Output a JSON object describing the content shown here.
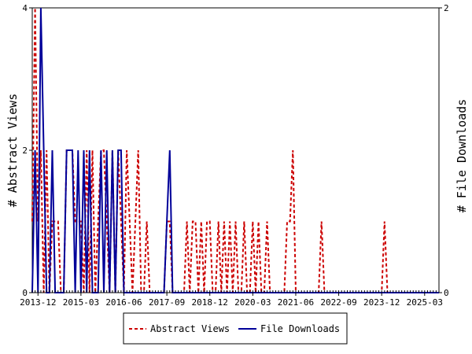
{
  "chart_data": {
    "type": "line",
    "title": "",
    "x_ticks": [
      "2013-12",
      "2015-03",
      "2016-06",
      "2017-09",
      "2018-12",
      "2020-03",
      "2021-06",
      "2022-09",
      "2023-12",
      "2025-03"
    ],
    "y_left_label": "# Abstract Views",
    "y_right_label": "# File Downloads",
    "y_left_range": [
      0,
      4
    ],
    "y_right_range": [
      0,
      2
    ],
    "y_left_ticks": [
      "0",
      "2",
      "4"
    ],
    "y_right_ticks": [
      "0",
      "2"
    ],
    "x_range": [
      "2013-10",
      "2025-08"
    ],
    "legend_position": "bottom-center",
    "colors": {
      "abstract_views": "#cc0000",
      "file_downloads": "#000099"
    },
    "series": [
      {
        "name": "Abstract Views",
        "axis": "left",
        "style": "dashed",
        "points": [
          [
            "2013-10",
            1
          ],
          [
            "2013-11",
            4
          ],
          [
            "2013-12",
            1
          ],
          [
            "2014-01",
            2
          ],
          [
            "2014-02",
            0
          ],
          [
            "2014-03",
            2
          ],
          [
            "2014-04",
            0
          ],
          [
            "2014-05",
            1
          ],
          [
            "2014-06",
            1
          ],
          [
            "2014-07",
            1
          ],
          [
            "2014-08",
            0
          ],
          [
            "2014-09",
            0
          ],
          [
            "2014-10",
            2
          ],
          [
            "2014-11",
            2
          ],
          [
            "2014-12",
            2
          ],
          [
            "2015-01",
            1
          ],
          [
            "2015-02",
            1
          ],
          [
            "2015-03",
            1
          ],
          [
            "2015-04",
            0
          ],
          [
            "2015-05",
            2
          ],
          [
            "2015-06",
            0
          ],
          [
            "2015-07",
            2
          ],
          [
            "2015-08",
            0
          ],
          [
            "2015-09",
            1
          ],
          [
            "2015-10",
            2
          ],
          [
            "2015-11",
            2
          ],
          [
            "2015-12",
            1
          ],
          [
            "2016-01",
            0
          ],
          [
            "2016-02",
            2
          ],
          [
            "2016-03",
            0
          ],
          [
            "2016-04",
            2
          ],
          [
            "2016-05",
            1
          ],
          [
            "2016-06",
            0
          ],
          [
            "2016-07",
            2
          ],
          [
            "2016-08",
            1
          ],
          [
            "2016-09",
            0
          ],
          [
            "2016-10",
            1
          ],
          [
            "2016-11",
            2
          ],
          [
            "2016-12",
            0
          ],
          [
            "2017-01",
            0
          ],
          [
            "2017-02",
            1
          ],
          [
            "2017-03",
            0
          ],
          [
            "2017-04",
            0
          ],
          [
            "2017-05",
            0
          ],
          [
            "2017-06",
            0
          ],
          [
            "2017-07",
            0
          ],
          [
            "2017-08",
            0
          ],
          [
            "2017-09",
            1
          ],
          [
            "2017-10",
            1
          ],
          [
            "2017-11",
            0
          ],
          [
            "2017-12",
            0
          ],
          [
            "2018-01",
            0
          ],
          [
            "2018-02",
            0
          ],
          [
            "2018-03",
            0
          ],
          [
            "2018-04",
            1
          ],
          [
            "2018-05",
            0
          ],
          [
            "2018-06",
            1
          ],
          [
            "2018-07",
            1
          ],
          [
            "2018-08",
            0
          ],
          [
            "2018-09",
            1
          ],
          [
            "2018-10",
            0
          ],
          [
            "2018-11",
            1
          ],
          [
            "2018-12",
            1
          ],
          [
            "2019-01",
            0
          ],
          [
            "2019-02",
            0
          ],
          [
            "2019-03",
            1
          ],
          [
            "2019-04",
            0
          ],
          [
            "2019-05",
            1
          ],
          [
            "2019-06",
            0
          ],
          [
            "2019-07",
            1
          ],
          [
            "2019-08",
            0
          ],
          [
            "2019-09",
            1
          ],
          [
            "2019-10",
            0
          ],
          [
            "2019-11",
            0
          ],
          [
            "2019-12",
            1
          ],
          [
            "2020-01",
            0
          ],
          [
            "2020-02",
            0
          ],
          [
            "2020-03",
            1
          ],
          [
            "2020-04",
            0
          ],
          [
            "2020-05",
            1
          ],
          [
            "2020-06",
            0
          ],
          [
            "2020-07",
            0
          ],
          [
            "2020-08",
            1
          ],
          [
            "2020-09",
            0
          ],
          [
            "2020-10",
            0
          ],
          [
            "2020-11",
            0
          ],
          [
            "2020-12",
            0
          ],
          [
            "2021-01",
            0
          ],
          [
            "2021-02",
            0
          ],
          [
            "2021-03",
            1
          ],
          [
            "2021-04",
            1
          ],
          [
            "2021-05",
            2
          ],
          [
            "2021-06",
            0
          ],
          [
            "2021-07",
            0
          ],
          [
            "2021-08",
            0
          ],
          [
            "2021-09",
            0
          ],
          [
            "2021-10",
            0
          ],
          [
            "2021-11",
            0
          ],
          [
            "2021-12",
            0
          ],
          [
            "2022-01",
            0
          ],
          [
            "2022-02",
            0
          ],
          [
            "2022-03",
            1
          ],
          [
            "2022-04",
            0
          ],
          [
            "2022-05",
            0
          ],
          [
            "2023-12",
            0
          ],
          [
            "2024-01",
            1
          ],
          [
            "2024-02",
            0
          ],
          [
            "2025-08",
            0
          ]
        ]
      },
      {
        "name": "File Downloads",
        "axis": "right",
        "style": "solid",
        "points": [
          [
            "2013-10",
            0
          ],
          [
            "2013-11",
            1
          ],
          [
            "2013-12",
            0
          ],
          [
            "2014-01",
            2
          ],
          [
            "2014-02",
            1
          ],
          [
            "2014-03",
            0
          ],
          [
            "2014-04",
            0
          ],
          [
            "2014-05",
            1
          ],
          [
            "2014-06",
            0
          ],
          [
            "2014-07",
            0
          ],
          [
            "2014-08",
            0
          ],
          [
            "2014-09",
            0
          ],
          [
            "2014-10",
            1
          ],
          [
            "2014-11",
            1
          ],
          [
            "2014-12",
            1
          ],
          [
            "2015-01",
            0
          ],
          [
            "2015-02",
            1
          ],
          [
            "2015-03",
            0
          ],
          [
            "2015-04",
            1
          ],
          [
            "2015-05",
            0
          ],
          [
            "2015-06",
            1
          ],
          [
            "2015-07",
            0
          ],
          [
            "2015-08",
            0
          ],
          [
            "2015-09",
            0
          ],
          [
            "2015-10",
            1
          ],
          [
            "2015-11",
            0
          ],
          [
            "2015-12",
            1
          ],
          [
            "2016-01",
            0
          ],
          [
            "2016-02",
            1
          ],
          [
            "2016-03",
            0
          ],
          [
            "2016-04",
            1
          ],
          [
            "2016-05",
            1
          ],
          [
            "2016-06",
            0
          ],
          [
            "2016-07",
            0
          ],
          [
            "2016-08",
            0
          ],
          [
            "2016-09",
            0
          ],
          [
            "2016-10",
            0
          ],
          [
            "2016-11",
            0
          ],
          [
            "2016-12",
            0
          ],
          [
            "2017-01",
            0
          ],
          [
            "2017-02",
            0
          ],
          [
            "2017-03",
            0
          ],
          [
            "2017-04",
            0
          ],
          [
            "2017-05",
            0
          ],
          [
            "2017-06",
            0
          ],
          [
            "2017-07",
            0
          ],
          [
            "2017-08",
            0
          ],
          [
            "2017-09",
            0.5
          ],
          [
            "2017-10",
            1
          ],
          [
            "2017-11",
            0
          ],
          [
            "2017-12",
            0
          ],
          [
            "2025-08",
            0
          ]
        ]
      }
    ]
  }
}
